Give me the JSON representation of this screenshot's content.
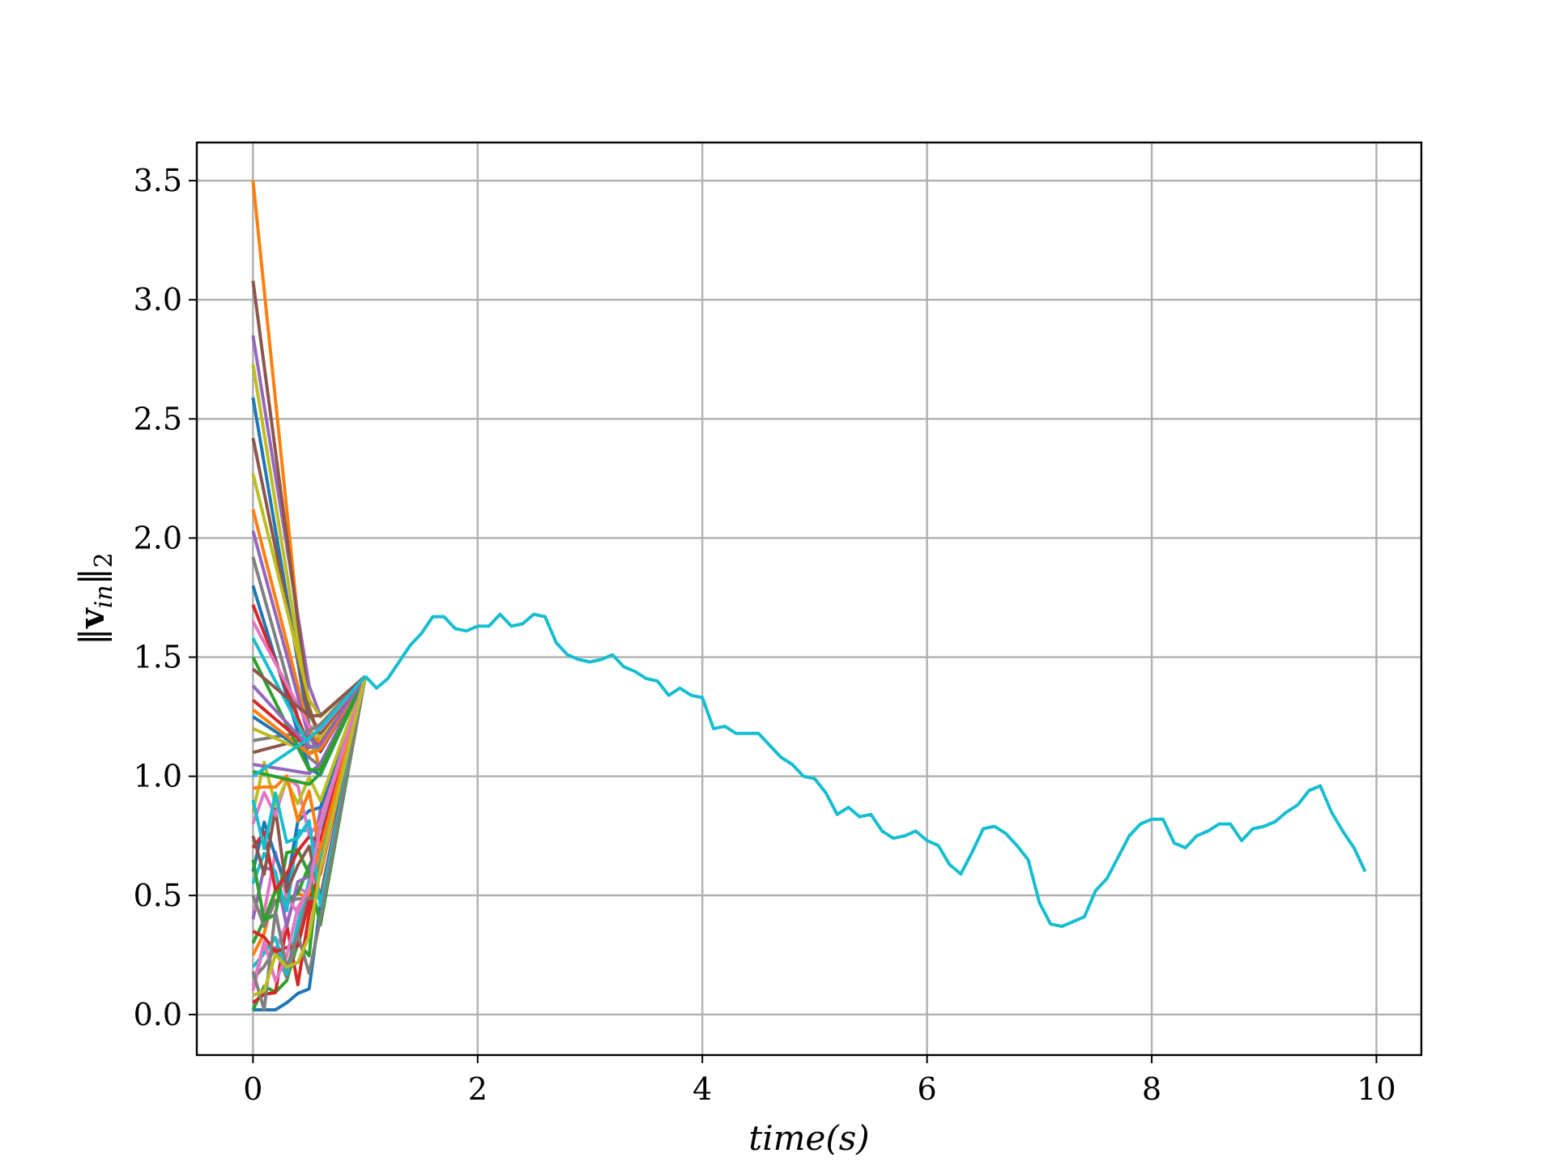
{
  "chart_data": {
    "type": "line",
    "xlabel": "time(s)",
    "ylabel": "||v_in||_2",
    "ylabel_parts": {
      "open": "‖",
      "bold": "v",
      "sub": "in",
      "close": "‖",
      "subscript2": "2"
    },
    "xlim": [
      -0.5,
      10.4
    ],
    "ylim": [
      -0.17,
      3.66
    ],
    "xticks": [
      0,
      2,
      4,
      6,
      8,
      10
    ],
    "xtick_labels": [
      "0",
      "2",
      "4",
      "6",
      "8",
      "10"
    ],
    "yticks": [
      0.0,
      0.5,
      1.0,
      1.5,
      2.0,
      2.5,
      3.0,
      3.5
    ],
    "ytick_labels": [
      "0.0",
      "0.5",
      "1.0",
      "1.5",
      "2.0",
      "2.5",
      "3.0",
      "3.5"
    ],
    "grid": true,
    "legend": "none",
    "num_series": 50,
    "colors": [
      "#1f77b4",
      "#ff7f0e",
      "#2ca02c",
      "#d62728",
      "#9467bd",
      "#8c564b",
      "#e377c2",
      "#7f7f7f",
      "#bcbd22",
      "#17becf"
    ],
    "transient_end": 1.0,
    "transient_initial_values": [
      0.0,
      3.5,
      0.02,
      0.05,
      2.85,
      3.08,
      0.1,
      0.15,
      2.73,
      0.2,
      2.59,
      0.25,
      0.3,
      0.35,
      0.4,
      2.42,
      0.45,
      0.5,
      2.27,
      0.55,
      0.6,
      2.12,
      0.65,
      0.7,
      2.03,
      0.75,
      0.8,
      1.92,
      0.85,
      0.9,
      1.8,
      0.95,
      1.02,
      1.72,
      1.05,
      1.1,
      1.65,
      1.15,
      1.2,
      1.58,
      1.25,
      1.28,
      1.5,
      1.32,
      1.38,
      1.45,
      0.12,
      0.18,
      0.08,
      1.0
    ],
    "shared_x": [
      1.0,
      1.1,
      1.2,
      1.3,
      1.4,
      1.5,
      1.6,
      1.7,
      1.8,
      1.9,
      2.0,
      2.1,
      2.2,
      2.3,
      2.4,
      2.5,
      2.6,
      2.7,
      2.8,
      2.9,
      3.0,
      3.1,
      3.2,
      3.3,
      3.4,
      3.5,
      3.6,
      3.7,
      3.8,
      3.9,
      4.0,
      4.1,
      4.2,
      4.3,
      4.4,
      4.5,
      4.6,
      4.7,
      4.8,
      4.9,
      5.0,
      5.1,
      5.2,
      5.3,
      5.4,
      5.5,
      5.6,
      5.7,
      5.8,
      5.9,
      6.0,
      6.1,
      6.2,
      6.3,
      6.4,
      6.5,
      6.6,
      6.7,
      6.8,
      6.9,
      7.0,
      7.1,
      7.2,
      7.3,
      7.4,
      7.5,
      7.6,
      7.7,
      7.8,
      7.9,
      8.0,
      8.1,
      8.2,
      8.3,
      8.4,
      8.5,
      8.6,
      8.7,
      8.8,
      8.9,
      9.0,
      9.1,
      9.2,
      9.3,
      9.4,
      9.5,
      9.6,
      9.7,
      9.8,
      9.9
    ],
    "shared_y": [
      1.42,
      1.37,
      1.41,
      1.48,
      1.55,
      1.6,
      1.67,
      1.67,
      1.62,
      1.61,
      1.63,
      1.63,
      1.68,
      1.63,
      1.64,
      1.68,
      1.67,
      1.56,
      1.51,
      1.49,
      1.48,
      1.49,
      1.51,
      1.46,
      1.44,
      1.41,
      1.4,
      1.34,
      1.37,
      1.34,
      1.33,
      1.2,
      1.21,
      1.18,
      1.18,
      1.18,
      1.13,
      1.08,
      1.05,
      1.0,
      0.99,
      0.93,
      0.84,
      0.87,
      0.83,
      0.84,
      0.77,
      0.74,
      0.75,
      0.77,
      0.73,
      0.71,
      0.63,
      0.59,
      0.68,
      0.78,
      0.79,
      0.76,
      0.71,
      0.65,
      0.47,
      0.38,
      0.37,
      0.39,
      0.41,
      0.52,
      0.57,
      0.66,
      0.75,
      0.8,
      0.82,
      0.82,
      0.72,
      0.7,
      0.75,
      0.77,
      0.8,
      0.8,
      0.73,
      0.78,
      0.79,
      0.81,
      0.85,
      0.88,
      0.94,
      0.96,
      0.85,
      0.77,
      0.7,
      0.6
    ]
  }
}
